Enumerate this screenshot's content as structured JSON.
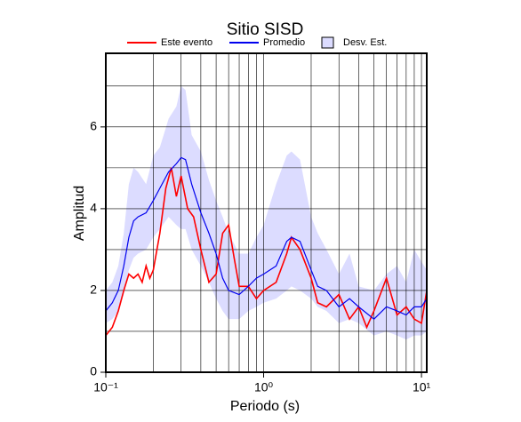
{
  "chart_data": {
    "type": "line",
    "title": "Sitio SISD",
    "xlabel": "Periodo (s)",
    "ylabel": "Amplitud",
    "xscale": "log",
    "xlim": [
      0.1,
      10.8
    ],
    "ylim": [
      0,
      7.8
    ],
    "xticks": [
      {
        "value": 0.1,
        "label": "10⁻¹"
      },
      {
        "value": 1,
        "label": "10⁰"
      },
      {
        "value": 10,
        "label": "10¹"
      }
    ],
    "xminor": [
      0.2,
      0.3,
      0.4,
      0.5,
      0.6,
      0.7,
      0.8,
      0.9,
      2,
      3,
      4,
      5,
      6,
      7,
      8,
      9
    ],
    "yticks": [
      0,
      2,
      4,
      6
    ],
    "yminor": [
      1,
      3,
      5,
      7
    ],
    "grid": true,
    "legend": "top",
    "series": [
      {
        "name": "Este evento",
        "color": "#ff0000",
        "x": [
          0.1,
          0.11,
          0.12,
          0.13,
          0.14,
          0.15,
          0.16,
          0.17,
          0.18,
          0.19,
          0.2,
          0.22,
          0.24,
          0.26,
          0.28,
          0.3,
          0.33,
          0.36,
          0.4,
          0.45,
          0.5,
          0.55,
          0.6,
          0.65,
          0.7,
          0.8,
          0.9,
          1.0,
          1.2,
          1.4,
          1.5,
          1.7,
          2.0,
          2.2,
          2.5,
          3.0,
          3.5,
          4.0,
          4.5,
          5.0,
          6.0,
          7.0,
          8.0,
          9.0,
          10,
          10.8
        ],
        "values": [
          0.9,
          1.1,
          1.5,
          2.0,
          2.4,
          2.3,
          2.4,
          2.2,
          2.6,
          2.3,
          2.5,
          3.4,
          4.5,
          5.0,
          4.3,
          4.8,
          4.0,
          3.8,
          3.0,
          2.2,
          2.4,
          3.4,
          3.6,
          2.8,
          2.1,
          2.1,
          1.8,
          2.0,
          2.2,
          2.9,
          3.3,
          3.0,
          2.3,
          1.7,
          1.6,
          1.9,
          1.3,
          1.6,
          1.1,
          1.5,
          2.3,
          1.4,
          1.6,
          1.3,
          1.2,
          2.0
        ]
      },
      {
        "name": "Promedio",
        "color": "#0000ee",
        "x": [
          0.1,
          0.11,
          0.12,
          0.13,
          0.14,
          0.15,
          0.16,
          0.18,
          0.2,
          0.22,
          0.25,
          0.28,
          0.3,
          0.32,
          0.35,
          0.4,
          0.45,
          0.5,
          0.55,
          0.6,
          0.7,
          0.8,
          0.9,
          1.0,
          1.2,
          1.4,
          1.5,
          1.7,
          2.0,
          2.2,
          2.5,
          3.0,
          3.5,
          4.0,
          5.0,
          6.0,
          7.0,
          8.0,
          9.0,
          10,
          10.8
        ],
        "values": [
          1.5,
          1.7,
          2.0,
          2.6,
          3.3,
          3.7,
          3.8,
          3.9,
          4.2,
          4.5,
          4.9,
          5.1,
          5.25,
          5.2,
          4.6,
          3.9,
          3.4,
          2.9,
          2.3,
          2.0,
          1.9,
          2.1,
          2.3,
          2.4,
          2.6,
          3.2,
          3.3,
          3.2,
          2.5,
          2.1,
          2.0,
          1.6,
          1.8,
          1.6,
          1.3,
          1.6,
          1.5,
          1.4,
          1.6,
          1.6,
          1.8
        ]
      },
      {
        "name": "Desv. Est.",
        "color": "#dcdcff",
        "x": [
          0.1,
          0.11,
          0.12,
          0.13,
          0.14,
          0.15,
          0.16,
          0.18,
          0.2,
          0.22,
          0.25,
          0.28,
          0.3,
          0.32,
          0.35,
          0.4,
          0.45,
          0.5,
          0.55,
          0.6,
          0.7,
          0.8,
          0.9,
          1.0,
          1.2,
          1.4,
          1.5,
          1.7,
          2.0,
          2.2,
          2.5,
          3.0,
          3.5,
          4.0,
          5.0,
          6.0,
          7.0,
          8.0,
          9.0,
          10,
          10.8
        ],
        "lower": [
          1.2,
          1.3,
          1.5,
          1.9,
          2.5,
          2.8,
          2.9,
          3.0,
          3.3,
          3.5,
          3.8,
          3.6,
          3.5,
          3.5,
          3.0,
          2.6,
          2.2,
          1.8,
          1.5,
          1.3,
          1.3,
          1.5,
          1.6,
          1.7,
          1.8,
          2.0,
          2.1,
          2.0,
          1.8,
          1.6,
          1.5,
          1.2,
          1.3,
          1.2,
          0.9,
          1.0,
          0.9,
          0.8,
          0.9,
          0.9,
          1.0
        ],
        "upper": [
          2.0,
          2.2,
          2.6,
          3.4,
          4.6,
          5.0,
          4.9,
          4.6,
          5.3,
          5.5,
          6.2,
          6.5,
          7.0,
          6.9,
          5.8,
          5.4,
          4.7,
          4.2,
          3.8,
          3.4,
          2.9,
          2.9,
          3.3,
          3.6,
          4.6,
          5.3,
          5.4,
          5.2,
          3.8,
          3.4,
          3.0,
          2.4,
          2.9,
          2.1,
          2.0,
          2.4,
          2.6,
          2.2,
          3.0,
          2.7,
          2.5
        ]
      }
    ]
  }
}
